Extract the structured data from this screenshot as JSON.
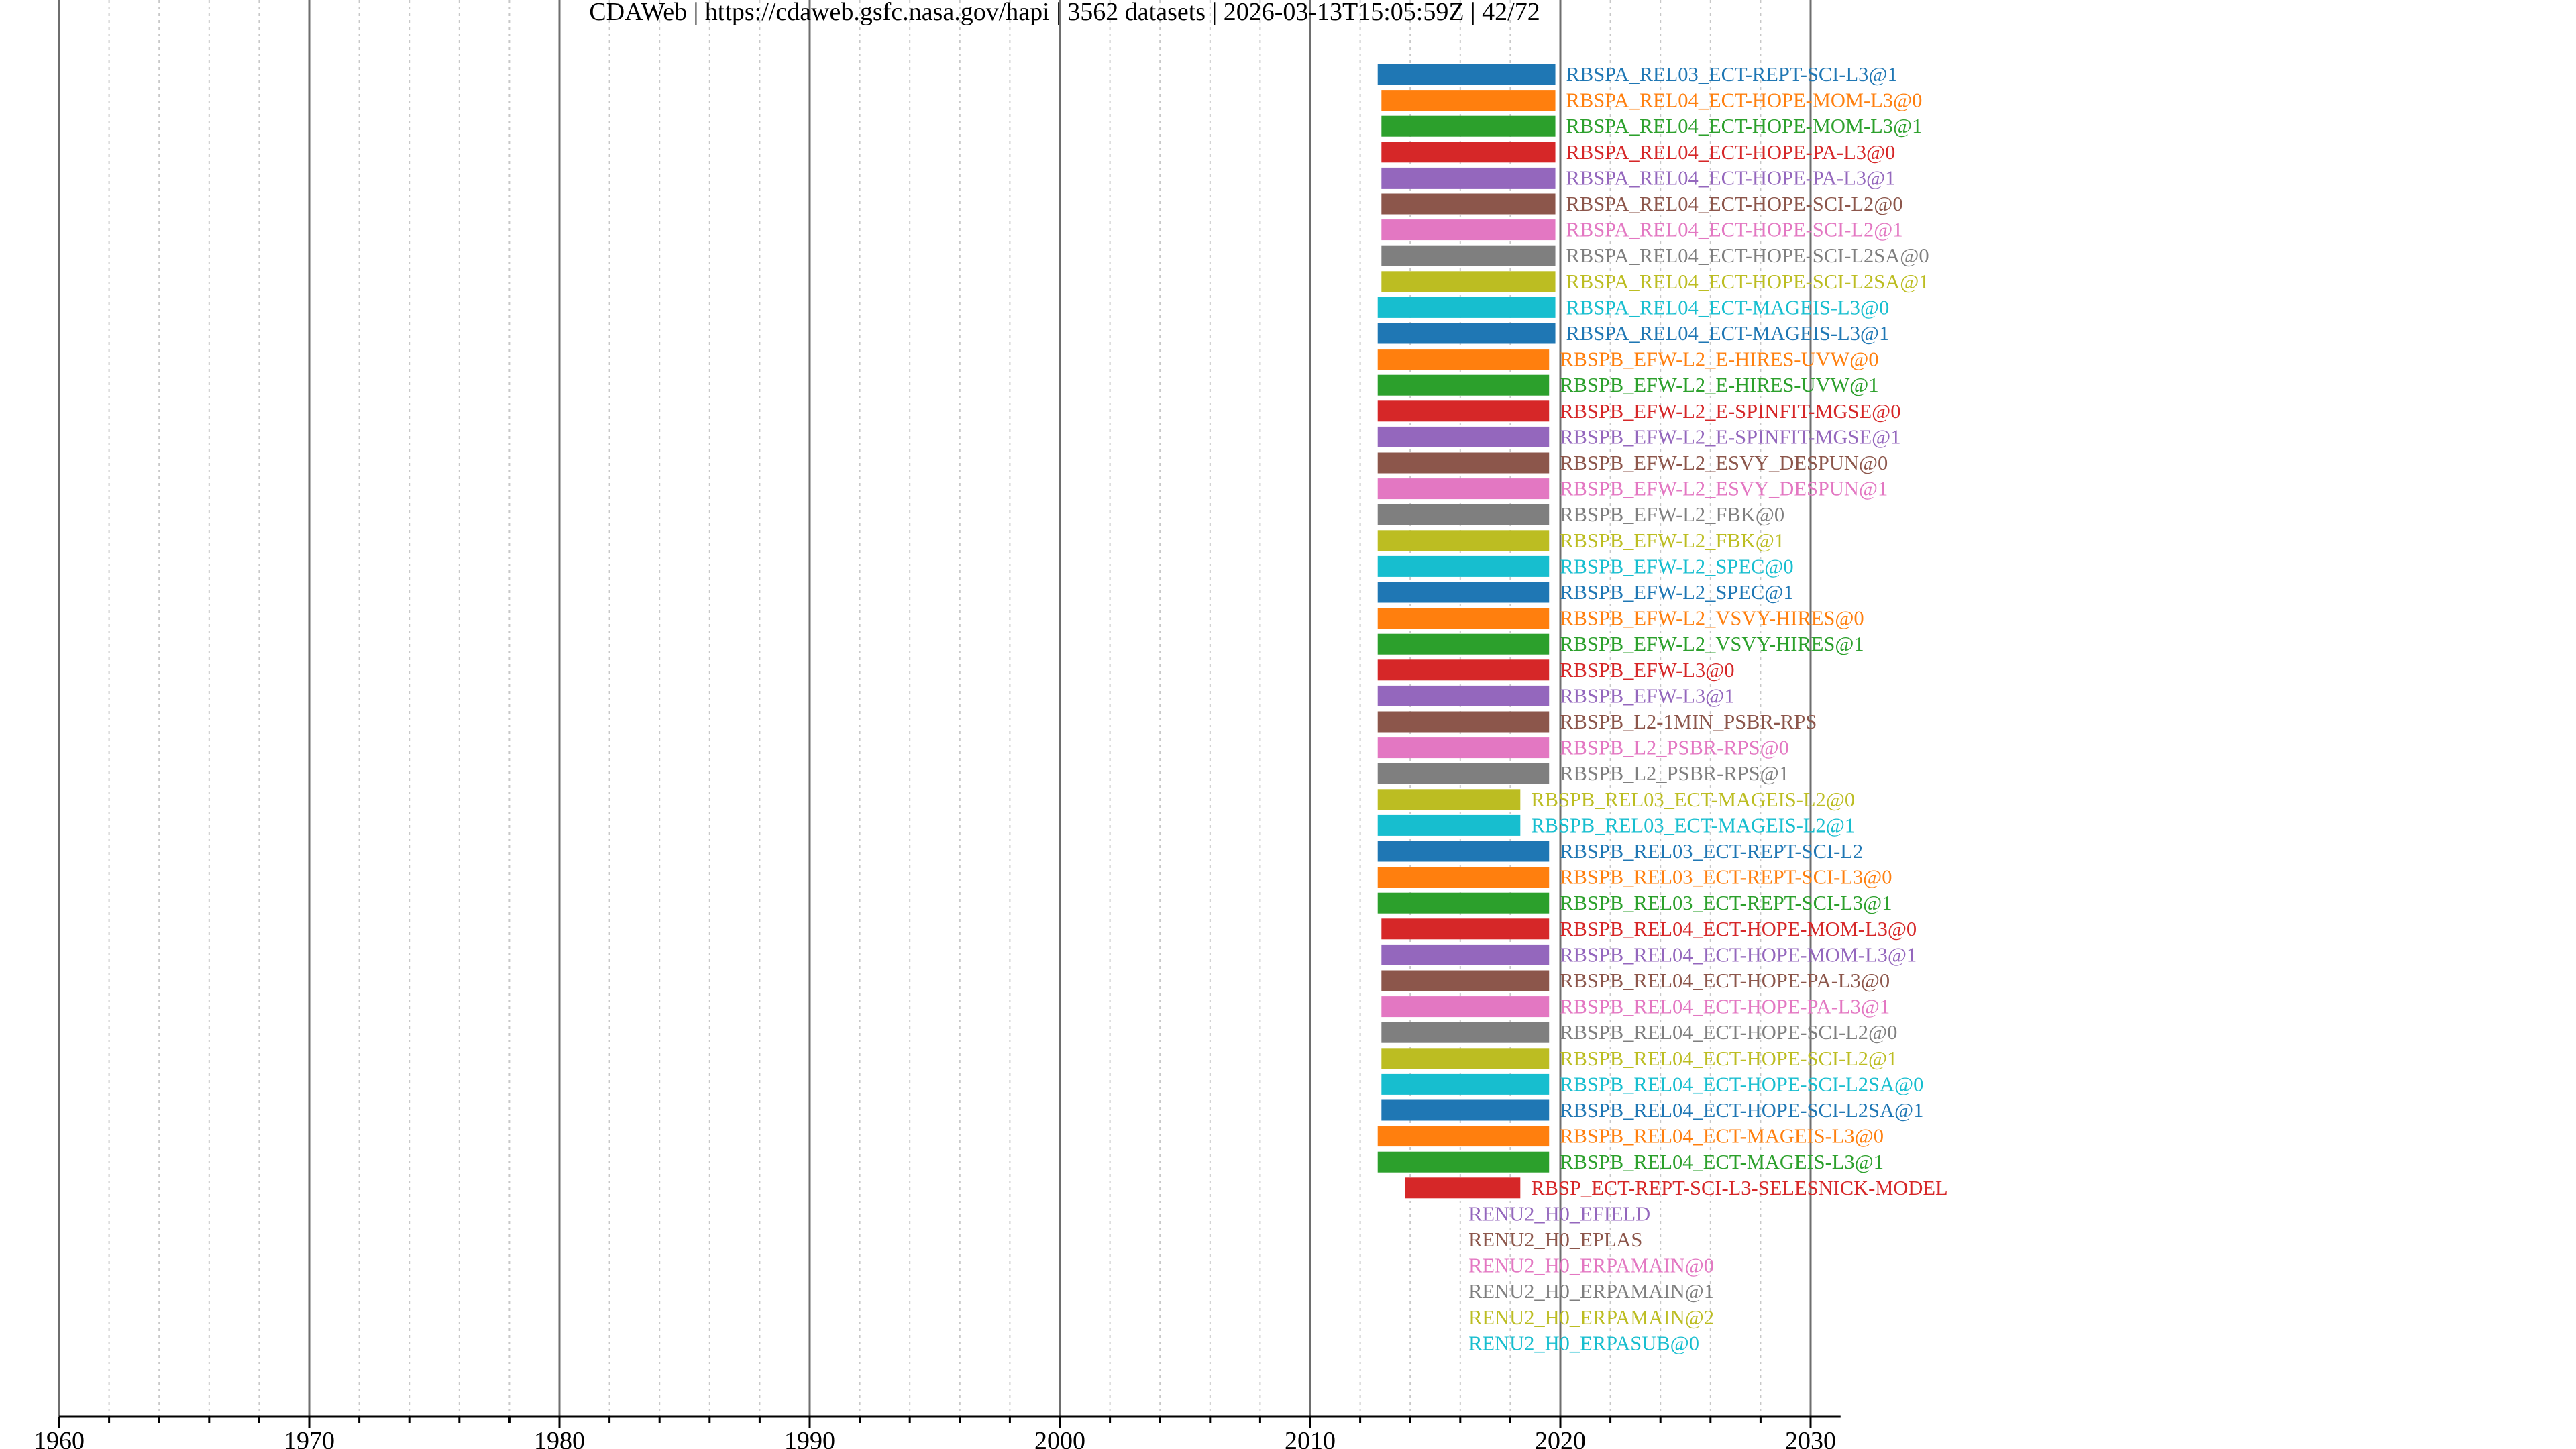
{
  "title": "CDAWeb | https://cdaweb.gsfc.nasa.gov/hapi | 3562 datasets | 2026-03-13T15:05:59Z | 42/72",
  "chart_data": {
    "type": "bar",
    "orientation": "horizontal",
    "title": "CDAWeb | https://cdaweb.gsfc.nasa.gov/hapi | 3562 datasets | 2026-03-13T15:05:59Z | 42/72",
    "xlabel": "",
    "ylabel": "",
    "xlim": [
      1960,
      2031.2
    ],
    "major_ticks": [
      1960,
      1970,
      1980,
      1990,
      2000,
      2010,
      2020,
      2030
    ],
    "tick_labels": [
      "1960",
      "1970",
      "1980",
      "1990",
      "2000",
      "2010",
      "2020",
      "2030"
    ],
    "minor_tick_step": 2,
    "grid": true,
    "palette": [
      "#1f77b4",
      "#ff7f0e",
      "#2ca02c",
      "#d62728",
      "#9467bd",
      "#8c564b",
      "#e377c2",
      "#7f7f7f",
      "#bcbd22",
      "#17becf"
    ],
    "datasets": [
      {
        "name": "RBSPA_REL03_ECT-REPT-SCI-L3@1",
        "start": 2012.7,
        "end": 2019.8
      },
      {
        "name": "RBSPA_REL04_ECT-HOPE-MOM-L3@0",
        "start": 2012.85,
        "end": 2019.8
      },
      {
        "name": "RBSPA_REL04_ECT-HOPE-MOM-L3@1",
        "start": 2012.85,
        "end": 2019.8
      },
      {
        "name": "RBSPA_REL04_ECT-HOPE-PA-L3@0",
        "start": 2012.85,
        "end": 2019.8
      },
      {
        "name": "RBSPA_REL04_ECT-HOPE-PA-L3@1",
        "start": 2012.85,
        "end": 2019.8
      },
      {
        "name": "RBSPA_REL04_ECT-HOPE-SCI-L2@0",
        "start": 2012.85,
        "end": 2019.8
      },
      {
        "name": "RBSPA_REL04_ECT-HOPE-SCI-L2@1",
        "start": 2012.85,
        "end": 2019.8
      },
      {
        "name": "RBSPA_REL04_ECT-HOPE-SCI-L2SA@0",
        "start": 2012.85,
        "end": 2019.8
      },
      {
        "name": "RBSPA_REL04_ECT-HOPE-SCI-L2SA@1",
        "start": 2012.85,
        "end": 2019.8
      },
      {
        "name": "RBSPA_REL04_ECT-MAGEIS-L3@0",
        "start": 2012.7,
        "end": 2019.8
      },
      {
        "name": "RBSPA_REL04_ECT-MAGEIS-L3@1",
        "start": 2012.7,
        "end": 2019.8
      },
      {
        "name": "RBSPB_EFW-L2_E-HIRES-UVW@0",
        "start": 2012.7,
        "end": 2019.55
      },
      {
        "name": "RBSPB_EFW-L2_E-HIRES-UVW@1",
        "start": 2012.7,
        "end": 2019.55
      },
      {
        "name": "RBSPB_EFW-L2_E-SPINFIT-MGSE@0",
        "start": 2012.7,
        "end": 2019.55
      },
      {
        "name": "RBSPB_EFW-L2_E-SPINFIT-MGSE@1",
        "start": 2012.7,
        "end": 2019.55
      },
      {
        "name": "RBSPB_EFW-L2_ESVY_DESPUN@0",
        "start": 2012.7,
        "end": 2019.55
      },
      {
        "name": "RBSPB_EFW-L2_ESVY_DESPUN@1",
        "start": 2012.7,
        "end": 2019.55
      },
      {
        "name": "RBSPB_EFW-L2_FBK@0",
        "start": 2012.7,
        "end": 2019.55
      },
      {
        "name": "RBSPB_EFW-L2_FBK@1",
        "start": 2012.7,
        "end": 2019.55
      },
      {
        "name": "RBSPB_EFW-L2_SPEC@0",
        "start": 2012.7,
        "end": 2019.55
      },
      {
        "name": "RBSPB_EFW-L2_SPEC@1",
        "start": 2012.7,
        "end": 2019.55
      },
      {
        "name": "RBSPB_EFW-L2_VSVY-HIRES@0",
        "start": 2012.7,
        "end": 2019.55
      },
      {
        "name": "RBSPB_EFW-L2_VSVY-HIRES@1",
        "start": 2012.7,
        "end": 2019.55
      },
      {
        "name": "RBSPB_EFW-L3@0",
        "start": 2012.7,
        "end": 2019.55
      },
      {
        "name": "RBSPB_EFW-L3@1",
        "start": 2012.7,
        "end": 2019.55
      },
      {
        "name": "RBSPB_L2-1MIN_PSBR-RPS",
        "start": 2012.7,
        "end": 2019.55
      },
      {
        "name": "RBSPB_L2_PSBR-RPS@0",
        "start": 2012.7,
        "end": 2019.55
      },
      {
        "name": "RBSPB_L2_PSBR-RPS@1",
        "start": 2012.7,
        "end": 2019.55
      },
      {
        "name": "RBSPB_REL03_ECT-MAGEIS-L2@0",
        "start": 2012.7,
        "end": 2018.4
      },
      {
        "name": "RBSPB_REL03_ECT-MAGEIS-L2@1",
        "start": 2012.7,
        "end": 2018.4
      },
      {
        "name": "RBSPB_REL03_ECT-REPT-SCI-L2",
        "start": 2012.7,
        "end": 2019.55
      },
      {
        "name": "RBSPB_REL03_ECT-REPT-SCI-L3@0",
        "start": 2012.7,
        "end": 2019.55
      },
      {
        "name": "RBSPB_REL03_ECT-REPT-SCI-L3@1",
        "start": 2012.7,
        "end": 2019.55
      },
      {
        "name": "RBSPB_REL04_ECT-HOPE-MOM-L3@0",
        "start": 2012.85,
        "end": 2019.55
      },
      {
        "name": "RBSPB_REL04_ECT-HOPE-MOM-L3@1",
        "start": 2012.85,
        "end": 2019.55
      },
      {
        "name": "RBSPB_REL04_ECT-HOPE-PA-L3@0",
        "start": 2012.85,
        "end": 2019.55
      },
      {
        "name": "RBSPB_REL04_ECT-HOPE-PA-L3@1",
        "start": 2012.85,
        "end": 2019.55
      },
      {
        "name": "RBSPB_REL04_ECT-HOPE-SCI-L2@0",
        "start": 2012.85,
        "end": 2019.55
      },
      {
        "name": "RBSPB_REL04_ECT-HOPE-SCI-L2@1",
        "start": 2012.85,
        "end": 2019.55
      },
      {
        "name": "RBSPB_REL04_ECT-HOPE-SCI-L2SA@0",
        "start": 2012.85,
        "end": 2019.55
      },
      {
        "name": "RBSPB_REL04_ECT-HOPE-SCI-L2SA@1",
        "start": 2012.85,
        "end": 2019.55
      },
      {
        "name": "RBSPB_REL04_ECT-MAGEIS-L3@0",
        "start": 2012.7,
        "end": 2019.55
      },
      {
        "name": "RBSPB_REL04_ECT-MAGEIS-L3@1",
        "start": 2012.7,
        "end": 2019.55
      },
      {
        "name": "RBSP_ECT-REPT-SCI-L3-SELESNICK-MODEL",
        "start": 2013.8,
        "end": 2018.4
      },
      {
        "name": "RENU2_H0_EFIELD",
        "start": 2015.9,
        "end": 2015.9
      },
      {
        "name": "RENU2_H0_EPLAS",
        "start": 2015.9,
        "end": 2015.9
      },
      {
        "name": "RENU2_H0_ERPAMAIN@0",
        "start": 2015.9,
        "end": 2015.9
      },
      {
        "name": "RENU2_H0_ERPAMAIN@1",
        "start": 2015.9,
        "end": 2015.9
      },
      {
        "name": "RENU2_H0_ERPAMAIN@2",
        "start": 2015.9,
        "end": 2015.9
      },
      {
        "name": "RENU2_H0_ERPASUB@0",
        "start": 2015.9,
        "end": 2015.9
      }
    ]
  }
}
